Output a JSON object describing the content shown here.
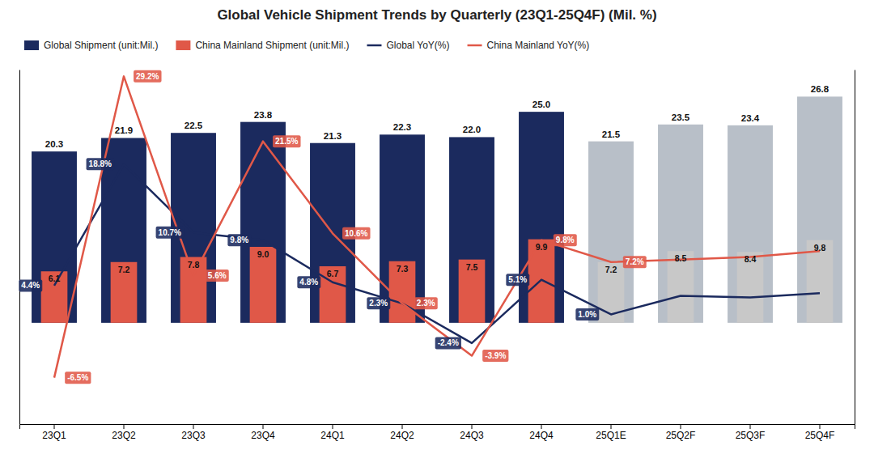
{
  "chart_data": {
    "type": "bar",
    "title": "Global Vehicle Shipment Trends by Quarterly (23Q1-25Q4F) (Mil. %)",
    "categories": [
      "23Q1",
      "23Q2",
      "23Q3",
      "23Q4",
      "24Q1",
      "24Q2",
      "24Q3",
      "24Q4",
      "25Q1E",
      "25Q2F",
      "25Q3F",
      "25Q4F"
    ],
    "series": [
      {
        "name": "Global Shipment (unit:Mil.)",
        "type": "bar",
        "color": "#1b2a5e",
        "colors": [
          "#1b2a5e",
          "#1b2a5e",
          "#1b2a5e",
          "#1b2a5e",
          "#1b2a5e",
          "#1b2a5e",
          "#1b2a5e",
          "#1b2a5e",
          "#b8bfc8",
          "#b8bfc8",
          "#b8bfc8",
          "#b8bfc8"
        ],
        "values": [
          20.3,
          21.9,
          22.5,
          23.8,
          21.3,
          22.3,
          22.0,
          25.0,
          21.5,
          23.5,
          23.4,
          26.8
        ],
        "value_labels": [
          "20.3",
          "21.9",
          "22.5",
          "23.8",
          "21.3",
          "22.3",
          "22.0",
          "25.0",
          "21.5",
          "23.5",
          "23.4",
          "26.8"
        ]
      },
      {
        "name": "China Mainland Shipment (unit:Mil.)",
        "type": "bar",
        "color": "#e05848",
        "colors": [
          "#e05848",
          "#e05848",
          "#e05848",
          "#e05848",
          "#e05848",
          "#e05848",
          "#e05848",
          "#e05848",
          "#c8c8c8",
          "#c8c8c8",
          "#c8c8c8",
          "#c8c8c8"
        ],
        "values": [
          6.1,
          7.2,
          7.8,
          9.0,
          6.7,
          7.3,
          7.5,
          9.9,
          7.2,
          8.5,
          8.4,
          9.8
        ],
        "value_labels": [
          "6.1",
          "7.2",
          "7.8",
          "9.0",
          "6.7",
          "7.3",
          "7.5",
          "9.9",
          "7.2",
          "8.5",
          "8.4",
          "9.8"
        ]
      },
      {
        "name": "Global YoY(%)",
        "type": "line",
        "axis": "y2",
        "color": "#1b2a5e",
        "values": [
          4.4,
          18.8,
          10.7,
          9.8,
          4.8,
          2.3,
          -2.4,
          5.1,
          1.0,
          3.2,
          3.0,
          3.5
        ],
        "value_labels": [
          "4.4%",
          "18.8%",
          "10.7%",
          "9.8%",
          "4.8%",
          "2.3%",
          "-2.4%",
          "5.1%",
          "1.0%",
          null,
          null,
          null
        ]
      },
      {
        "name": "China Mainland YoY(%)",
        "type": "line",
        "axis": "y2",
        "color": "#e05848",
        "values": [
          -6.5,
          29.2,
          5.6,
          21.5,
          10.6,
          2.3,
          -3.9,
          9.8,
          7.2,
          7.5,
          7.8,
          8.5
        ],
        "value_labels": [
          "-6.5%",
          "29.2%",
          "5.6%",
          "21.5%",
          "10.6%",
          "2.3%",
          "-3.9%",
          "9.8%",
          "7.2%",
          null,
          null,
          null
        ]
      }
    ],
    "ylim": [
      -12,
      30
    ],
    "y2lim": [
      -12,
      30
    ],
    "data_labels": true,
    "tick_labels": "x",
    "legend": "top",
    "grid": false
  }
}
